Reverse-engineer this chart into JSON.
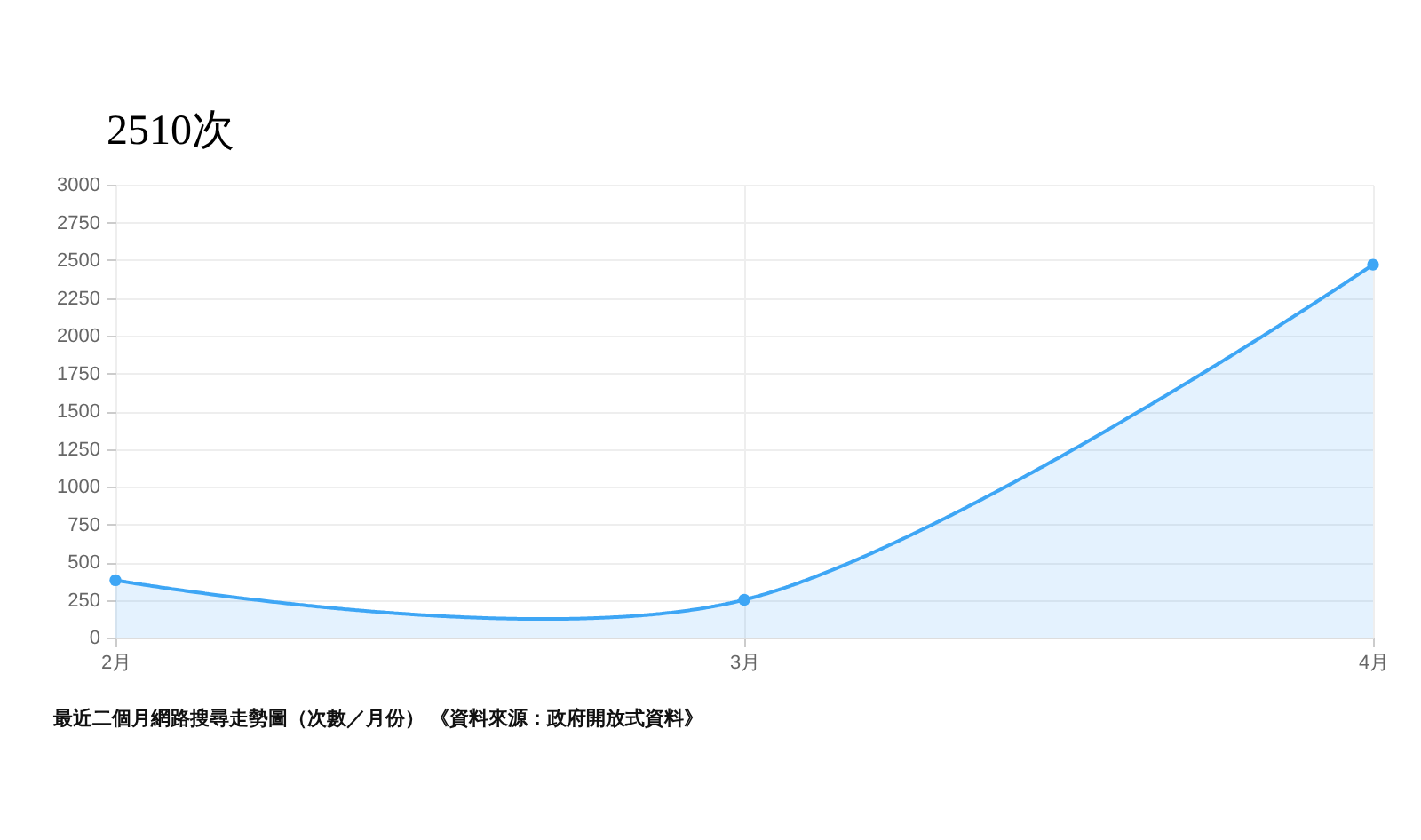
{
  "chart_data": {
    "type": "area",
    "title": "2510次",
    "categories": [
      "2月",
      "3月",
      "4月"
    ],
    "series": [
      {
        "color": "#3ea6f5",
        "values": [
          380,
          250,
          2470
        ]
      }
    ],
    "ylim": [
      0,
      3000
    ],
    "yticks": [
      0,
      250,
      500,
      750,
      1000,
      1250,
      1500,
      1750,
      2000,
      2250,
      2500,
      2750,
      3000
    ],
    "grid": true,
    "marker": "circle",
    "line_style": "solid",
    "annotations": [
      "最近二個月網路搜尋走勢圖（次數／月份） 《資料來源：政府開放式資料》"
    ]
  }
}
